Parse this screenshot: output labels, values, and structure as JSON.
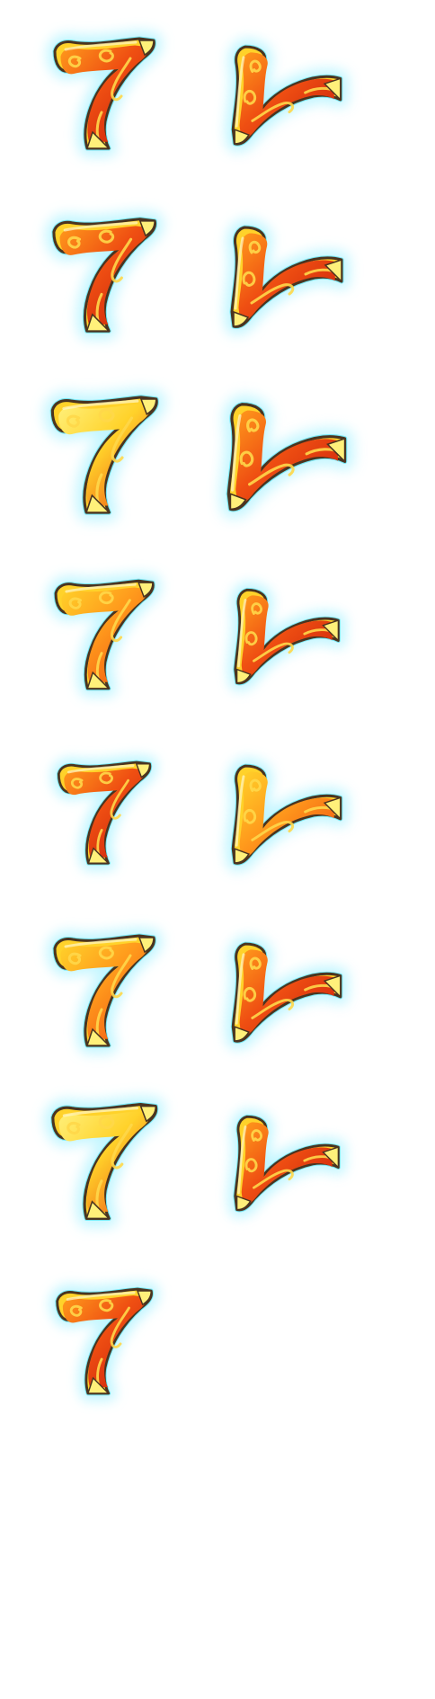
{
  "sprite_sheet": {
    "symbol": "seven-icon",
    "colors": {
      "glow": "#b8f4ff",
      "glow_edge": "#58e0f0",
      "outline": "#4a3420",
      "fire_dark": "#c81e0c",
      "fire_mid": "#ef4f12",
      "fire_light": "#ff9a1c",
      "gold": "#ffd22a",
      "gold_light": "#fff07a",
      "swirl": "#ffd84a"
    },
    "frames": [
      {
        "name": "seven-frame-1",
        "orientation": "upright",
        "palette": "red"
      },
      {
        "name": "seven-frame-2",
        "orientation": "rotated",
        "palette": "red"
      },
      {
        "name": "seven-frame-3",
        "orientation": "upright",
        "palette": "red"
      },
      {
        "name": "seven-frame-4",
        "orientation": "rotated",
        "palette": "red"
      },
      {
        "name": "seven-frame-5",
        "orientation": "upright",
        "palette": "gold"
      },
      {
        "name": "seven-frame-6",
        "orientation": "rotated",
        "palette": "red"
      },
      {
        "name": "seven-frame-7",
        "orientation": "upright",
        "palette": "orange"
      },
      {
        "name": "seven-frame-8",
        "orientation": "rotated",
        "palette": "red"
      },
      {
        "name": "seven-frame-9",
        "orientation": "upright",
        "palette": "red"
      },
      {
        "name": "seven-frame-10",
        "orientation": "rotated",
        "palette": "orange"
      },
      {
        "name": "seven-frame-11",
        "orientation": "upright",
        "palette": "orange"
      },
      {
        "name": "seven-frame-12",
        "orientation": "rotated",
        "palette": "red"
      },
      {
        "name": "seven-frame-13",
        "orientation": "upright",
        "palette": "gold"
      },
      {
        "name": "seven-frame-14",
        "orientation": "rotated",
        "palette": "red"
      },
      {
        "name": "seven-frame-15",
        "orientation": "upright",
        "palette": "red"
      }
    ]
  }
}
